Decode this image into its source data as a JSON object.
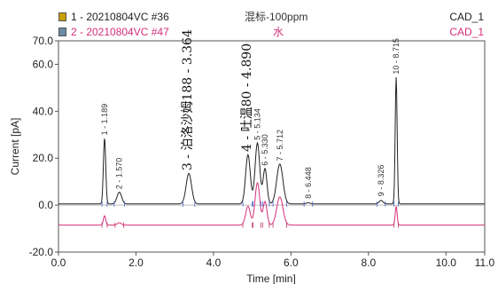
{
  "legend": [
    {
      "id": "1",
      "text": "1 - 20210804VC #36",
      "center": "混标-100ppm",
      "right": "CAD_1",
      "color": "#222222",
      "icon_color": "#c8a000"
    },
    {
      "id": "2",
      "text": "2 - 20210804VC #47",
      "center": "水",
      "right": "CAD_1",
      "color": "#d4307a",
      "icon_color": "#6a8aa8"
    }
  ],
  "chart_data": {
    "type": "line",
    "xlabel": "Time [min]",
    "ylabel": "Current [pA]",
    "xlim": [
      0.0,
      11.0
    ],
    "ylim": [
      -20.0,
      70.0
    ],
    "x_ticks": [
      "0.0",
      "2.0",
      "4.0",
      "6.0",
      "8.0",
      "10.0",
      "11.0"
    ],
    "x_tick_values": [
      0,
      2,
      4,
      6,
      8,
      10,
      11
    ],
    "y_ticks": [
      "-20.0",
      "0.0",
      "20.0",
      "40.0",
      "60.0",
      "70.0"
    ],
    "y_tick_values": [
      -20,
      0,
      20,
      40,
      60,
      70
    ],
    "series": [
      {
        "name": "1 - 20210804VC #36",
        "color": "#222222",
        "baseline": 0.5,
        "peaks": [
          {
            "t": 1.189,
            "h": 28,
            "w": 0.03
          },
          {
            "t": 1.57,
            "h": 5,
            "w": 0.06
          },
          {
            "t": 3.364,
            "h": 13,
            "w": 0.07
          },
          {
            "t": 4.89,
            "h": 21,
            "w": 0.06
          },
          {
            "t": 5.134,
            "h": 26,
            "w": 0.06
          },
          {
            "t": 5.33,
            "h": 15,
            "w": 0.05
          },
          {
            "t": 5.712,
            "h": 17,
            "w": 0.08
          },
          {
            "t": 6.448,
            "h": 0.5,
            "w": 0.05
          },
          {
            "t": 8.326,
            "h": 1.5,
            "w": 0.05
          },
          {
            "t": 8.715,
            "h": 54,
            "w": 0.025
          }
        ]
      },
      {
        "name": "2 - 20210804VC #47",
        "color": "#d4307a",
        "baseline": -8.5,
        "peaks": [
          {
            "t": 1.189,
            "h": 4,
            "w": 0.03
          },
          {
            "t": 1.57,
            "h": 1,
            "w": 0.05
          },
          {
            "t": 4.89,
            "h": 8,
            "w": 0.06
          },
          {
            "t": 5.134,
            "h": 18,
            "w": 0.06
          },
          {
            "t": 5.33,
            "h": 10,
            "w": 0.05
          },
          {
            "t": 5.712,
            "h": 12,
            "w": 0.08
          },
          {
            "t": 8.715,
            "h": 8,
            "w": 0.025
          }
        ]
      }
    ],
    "peak_labels": [
      {
        "label": "1 - 1.189",
        "t": 1.189,
        "y": 29,
        "style": "small"
      },
      {
        "label": "2 - 1.570",
        "t": 1.57,
        "y": 6,
        "style": "small"
      },
      {
        "label": "3 - 泊洛沙姆188 - 3.364",
        "t": 3.364,
        "y": 14,
        "style": "big"
      },
      {
        "label": "4 - 吐温80 - 4.890",
        "t": 4.89,
        "y": 22,
        "style": "big"
      },
      {
        "label": "5 - 5.134",
        "t": 5.134,
        "y": 27,
        "style": "small"
      },
      {
        "label": "6 - 5.330",
        "t": 5.33,
        "y": 16,
        "style": "small"
      },
      {
        "label": "7 - 5.712",
        "t": 5.712,
        "y": 18,
        "style": "small"
      },
      {
        "label": "8 - 6.448",
        "t": 6.448,
        "y": 2,
        "style": "small"
      },
      {
        "label": "9 - 8.326",
        "t": 8.326,
        "y": 3,
        "style": "small"
      },
      {
        "label": "10 - 8.715",
        "t": 8.715,
        "y": 55,
        "style": "small"
      }
    ]
  }
}
